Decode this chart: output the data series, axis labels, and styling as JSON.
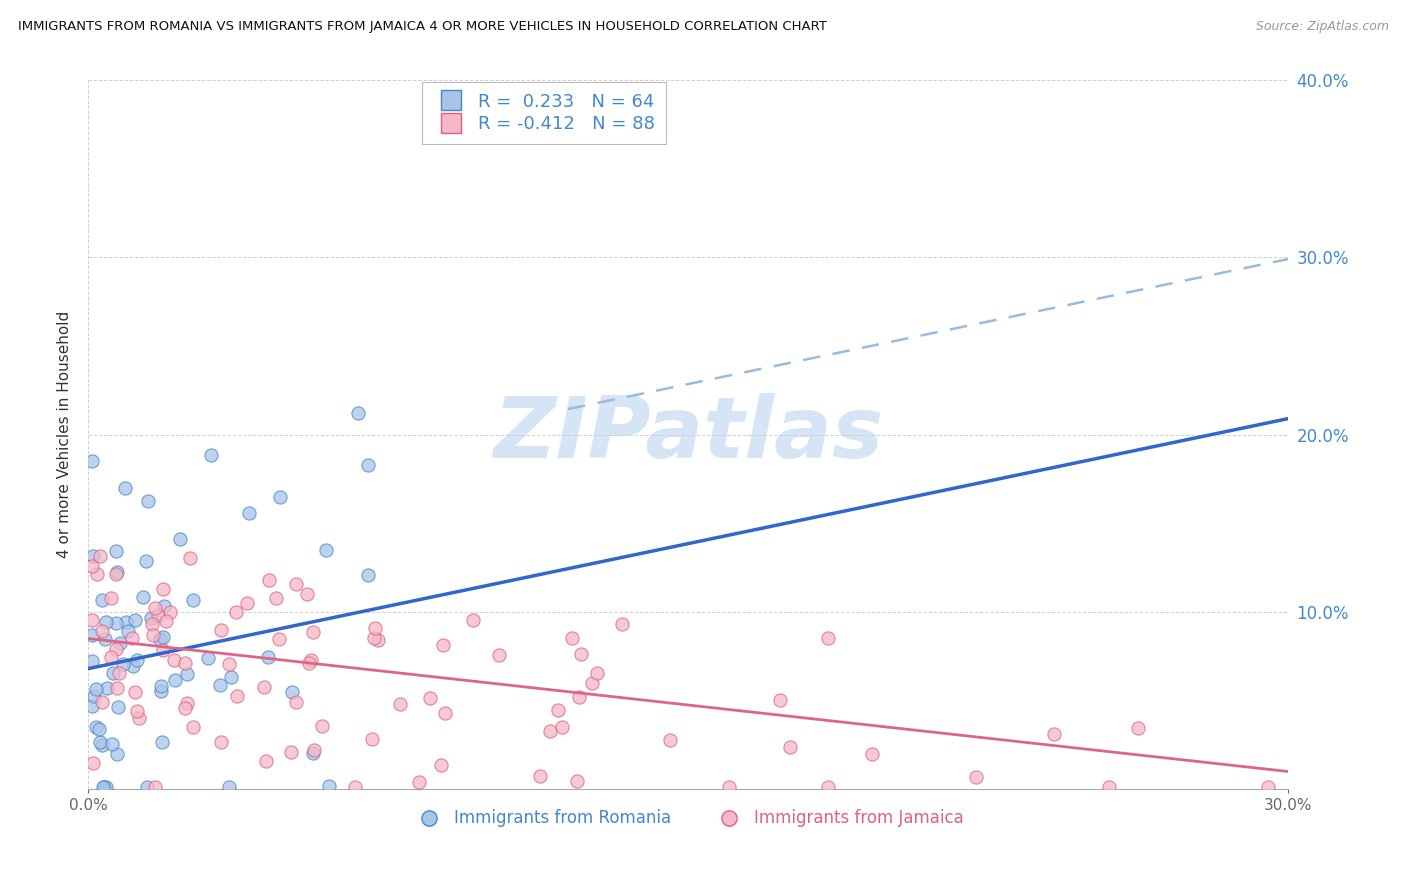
{
  "title": "IMMIGRANTS FROM ROMANIA VS IMMIGRANTS FROM JAMAICA 4 OR MORE VEHICLES IN HOUSEHOLD CORRELATION CHART",
  "source": "Source: ZipAtlas.com",
  "ylabel": "4 or more Vehicles in Household",
  "xlim": [
    0.0,
    0.3
  ],
  "ylim": [
    0.0,
    0.4
  ],
  "xtick_vals": [
    0.0,
    0.3
  ],
  "ytick_vals": [
    0.0,
    0.1,
    0.2,
    0.3,
    0.4
  ],
  "romania_R": 0.233,
  "romania_N": 64,
  "jamaica_R": -0.412,
  "jamaica_N": 88,
  "romania_fill": "#aac4e8",
  "romania_edge": "#4488cc",
  "jamaica_fill": "#f4b8c8",
  "jamaica_edge": "#e06080",
  "romania_line_color": "#3366cc",
  "jamaica_line_color": "#dd6688",
  "dashed_color": "#99bbdd",
  "right_label_color": "#4488cc",
  "watermark_color": "#d5e5f5",
  "legend_romania": "Immigrants from Romania",
  "legend_jamaica": "Immigrants from Jamaica",
  "legend_R_color": "#000000",
  "legend_N_color": "#4488cc"
}
